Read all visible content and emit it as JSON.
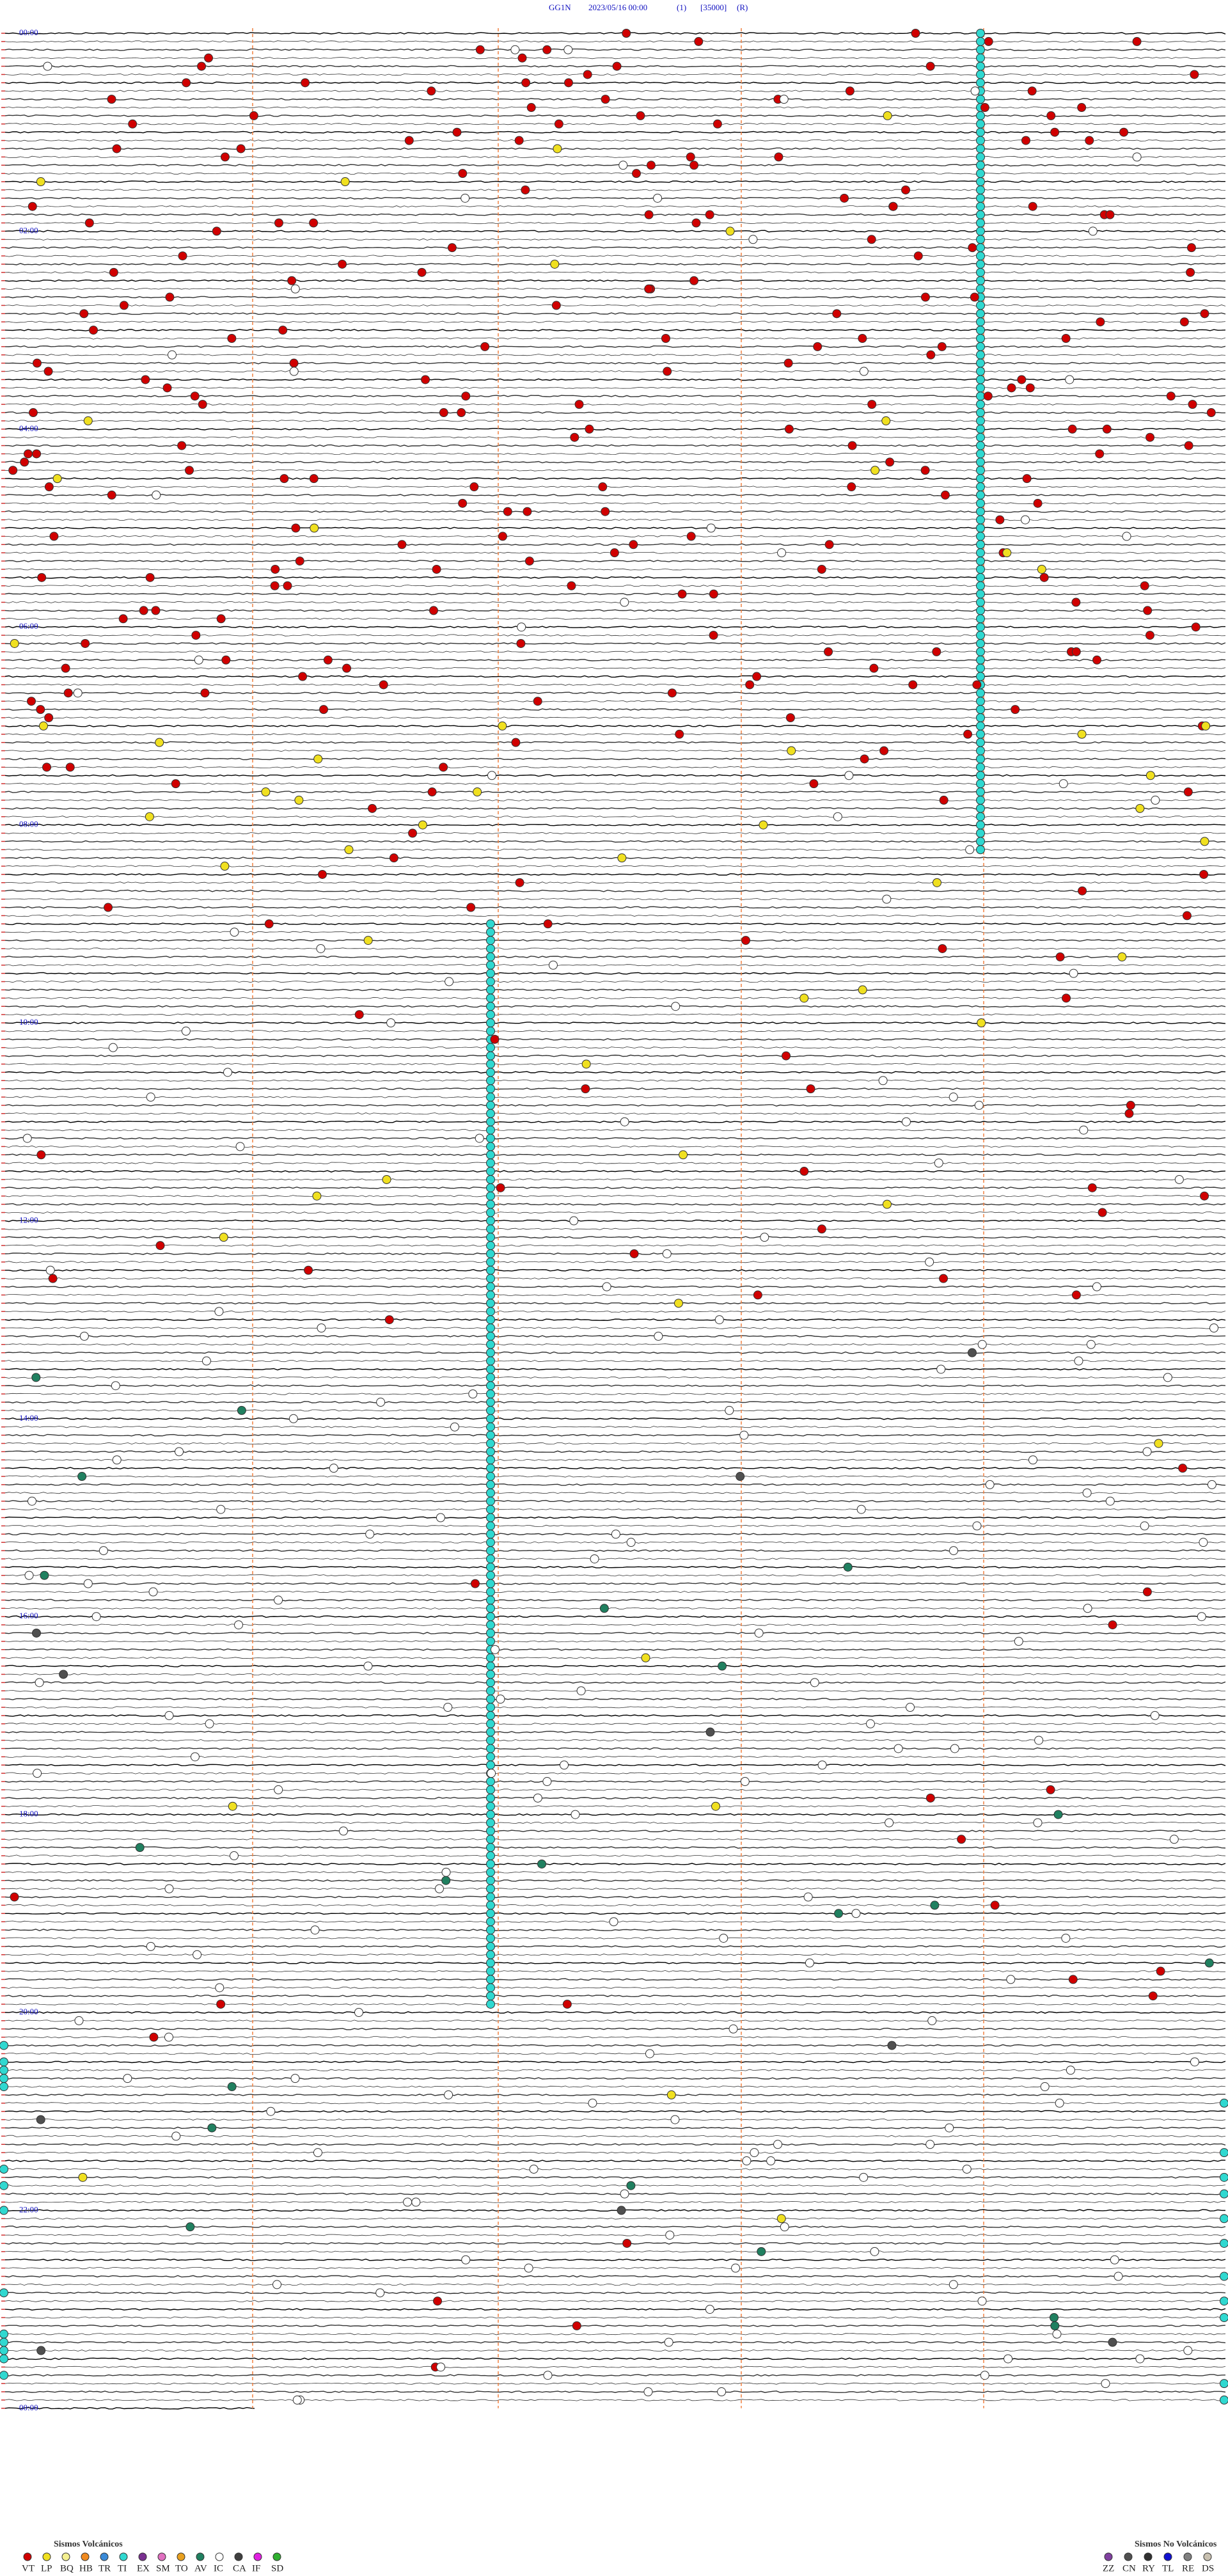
{
  "header": {
    "station": "GG1N",
    "datetime": "2023/05/16 00:00",
    "channel": "(1)",
    "gain": "[35000]",
    "mode": "(R)"
  },
  "time_labels": [
    "00:00",
    "02:00",
    "04:00",
    "06:00",
    "08:00",
    "10:00",
    "12:00",
    "14:00",
    "16:00",
    "18:00",
    "20:00",
    "22:00",
    "00:00"
  ],
  "legend": {
    "volcanic": {
      "title": "Sismos Volcánicos",
      "codes": [
        "VT",
        "LP",
        "BQ",
        "HB",
        "TR",
        "TI",
        "EX",
        "SM",
        "TO",
        "AV",
        "IC",
        "CA",
        "IF",
        "SD"
      ],
      "colors": [
        "#d00000",
        "#f0e020",
        "#f4f090",
        "#f08a20",
        "#3a8ad8",
        "#30d8d0",
        "#7a3090",
        "#e070c0",
        "#e8a020",
        "#208060",
        "#ffffff",
        "#404040",
        "#e020e0",
        "#30b030"
      ]
    },
    "non_volcanic": {
      "title": "Sismos No Volcánicos",
      "codes": [
        "ZZ",
        "CN",
        "RY",
        "TL",
        "RE",
        "DS"
      ],
      "colors": [
        "#8040a0",
        "#505050",
        "#303030",
        "#1010d0",
        "#808080",
        "#c8c0b0"
      ]
    }
  }
}
